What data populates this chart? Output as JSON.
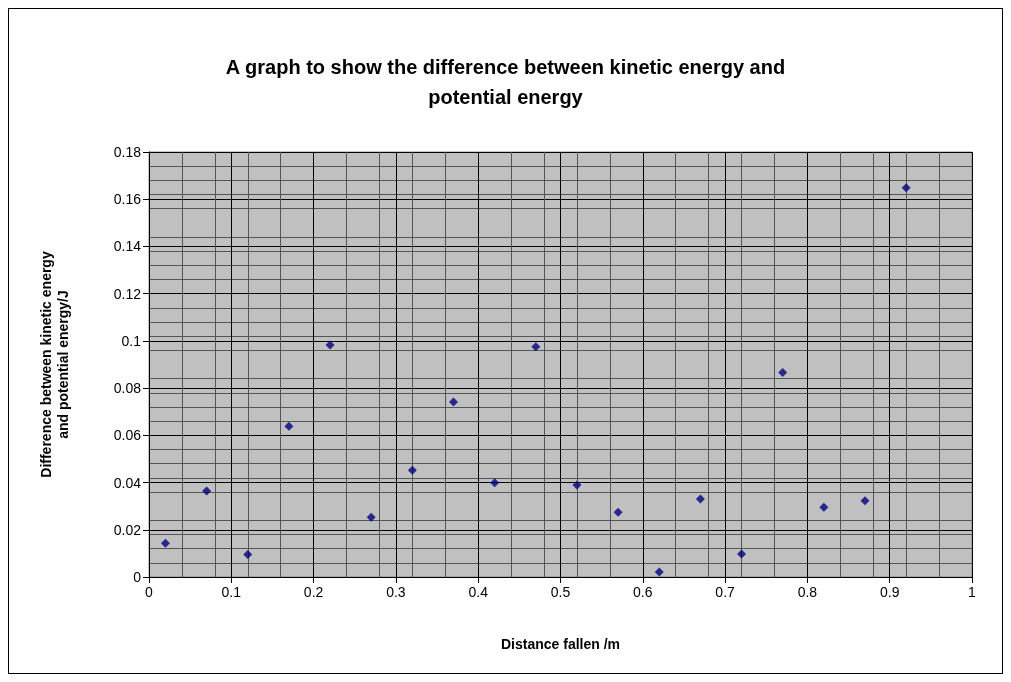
{
  "chart_data": {
    "type": "scatter",
    "title": "A graph to show the difference between kinetic energy and\npotential energy",
    "xlabel": "Distance fallen /m",
    "ylabel": "Difference between kinetic energy\nand potential energy/J",
    "series": [
      {
        "color": "#000080",
        "x": [
          0.02,
          0.07,
          0.12,
          0.17,
          0.22,
          0.27,
          0.32,
          0.37,
          0.42,
          0.47,
          0.52,
          0.57,
          0.62,
          0.67,
          0.72,
          0.77,
          0.82,
          0.87,
          0.92
        ],
        "values": [
          0.0143,
          0.0364,
          0.0095,
          0.0639,
          0.0983,
          0.0253,
          0.0452,
          0.0741,
          0.0399,
          0.0975,
          0.039,
          0.0274,
          0.0021,
          0.033,
          0.0097,
          0.0866,
          0.0295,
          0.0323,
          0.1649
        ]
      }
    ],
    "xlim": [
      0,
      1
    ],
    "xticks": [
      0,
      0.1,
      0.2,
      0.3,
      0.4,
      0.5,
      0.6,
      0.7,
      0.8,
      0.9,
      1
    ],
    "ylim": [
      0,
      0.18
    ],
    "yticks": [
      0,
      0.02,
      0.04,
      0.06,
      0.08,
      0.1,
      0.12,
      0.14,
      0.16,
      0.18
    ],
    "grid": true,
    "marker": "diamond"
  }
}
